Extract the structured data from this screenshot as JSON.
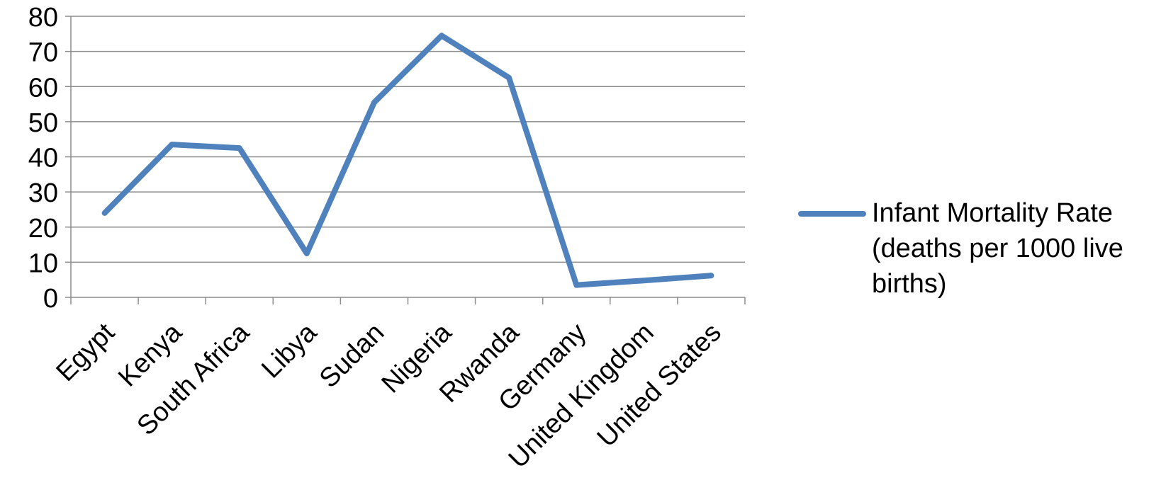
{
  "chart_data": {
    "type": "line",
    "title": "",
    "xlabel": "",
    "ylabel": "",
    "categories": [
      "Egypt",
      "Kenya",
      "South Africa",
      "Libya",
      "Sudan",
      "Nigeria",
      "Rwanda",
      "Germany",
      "United Kingdom",
      "United States"
    ],
    "series": [
      {
        "name": "Infant Mortality Rate (deaths per 1000 live births)",
        "color": "#4f81bd",
        "values": [
          24,
          43.5,
          42.5,
          12.5,
          55.5,
          74.5,
          62.5,
          3.5,
          4.8,
          6.2
        ]
      }
    ],
    "ylim": [
      0,
      80
    ],
    "yticks": [
      0,
      10,
      20,
      30,
      40,
      50,
      60,
      70,
      80
    ],
    "grid": true,
    "legend": "right"
  }
}
